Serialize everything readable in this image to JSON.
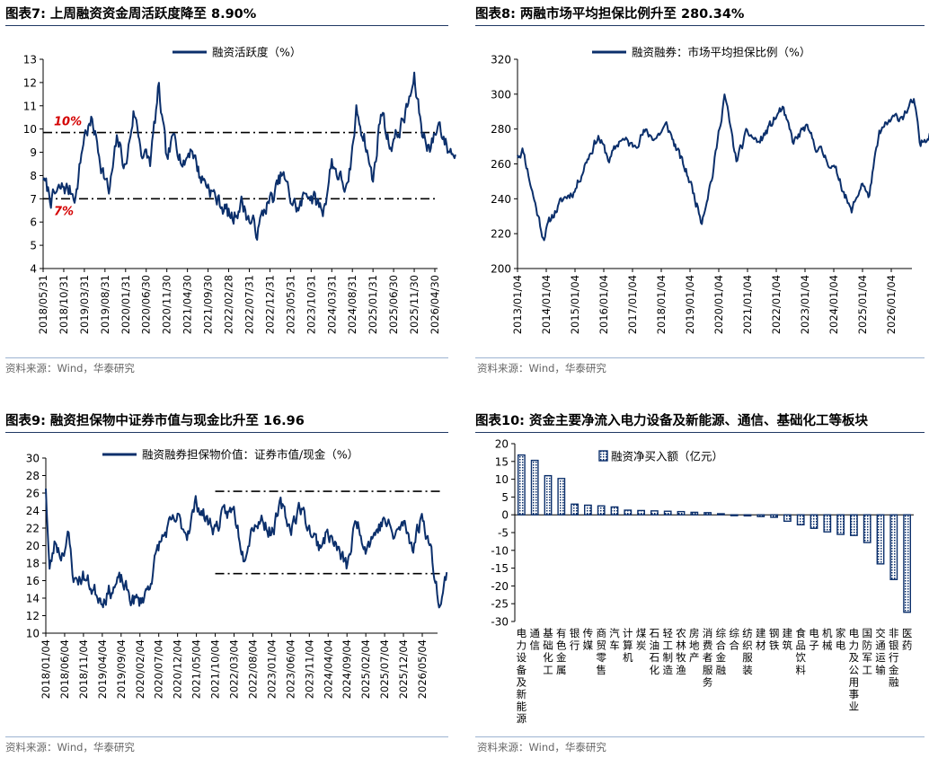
{
  "colors": {
    "series": "#0b2f6b",
    "annotation": "#d40000",
    "ref_line": "#000000",
    "title_rule": "#1f3864",
    "source_rule": "#9db3d1"
  },
  "panels": [
    {
      "title": "图表7:  上周融资资金周活跃度降至 8.90%",
      "source": "资料来源：Wind，华泰研究"
    },
    {
      "title": "图表8:  两融市场平均担保比例升至 280.34%",
      "source": "资料来源：Wind，华泰研究"
    },
    {
      "title": "图表9:  融资担保物中证券市值与现金比升至 16.96",
      "source": "资料来源：Wind，华泰研究"
    },
    {
      "title": "图表10:  资金主要净流入电力设备及新能源、通信、基础化工等板块",
      "source": "资料来源：Wind，华泰研究"
    }
  ],
  "chart_data": [
    {
      "type": "line",
      "legend": "融资活跃度（%）",
      "ylim": [
        4,
        13
      ],
      "yticks": [
        4,
        5,
        6,
        7,
        8,
        9,
        10,
        11,
        12,
        13
      ],
      "x_tick_labels": [
        "2018/05/31",
        "2018/10/31",
        "2019/03/31",
        "2019/08/31",
        "2020/01/31",
        "2020/06/30",
        "2020/11/30",
        "2021/04/30",
        "2021/09/30",
        "2022/02/28",
        "2022/07/31",
        "2022/12/31",
        "2023/05/31",
        "2023/10/31",
        "2024/03/31",
        "2024/08/31",
        "2025/01/31",
        "2025/06/30",
        "2025/11/30",
        "2026/04/30"
      ],
      "reference_lines": [
        {
          "value": 9.85,
          "label": "10%"
        },
        {
          "value": 7.0,
          "label": "7%"
        }
      ],
      "anchors": [
        [
          0,
          7.8
        ],
        [
          0.4,
          7.0
        ],
        [
          1.0,
          7.5
        ],
        [
          1.6,
          7.2
        ],
        [
          2.0,
          9.8
        ],
        [
          2.4,
          10.3
        ],
        [
          2.8,
          8.6
        ],
        [
          3.2,
          7.2
        ],
        [
          3.6,
          9.6
        ],
        [
          4.0,
          8.3
        ],
        [
          4.4,
          10.8
        ],
        [
          4.8,
          9.0
        ],
        [
          5.2,
          8.6
        ],
        [
          5.6,
          11.7
        ],
        [
          6.0,
          8.6
        ],
        [
          6.4,
          9.8
        ],
        [
          6.8,
          8.4
        ],
        [
          7.2,
          9.3
        ],
        [
          7.6,
          8.0
        ],
        [
          8.0,
          7.6
        ],
        [
          8.4,
          7.0
        ],
        [
          8.8,
          6.6
        ],
        [
          9.2,
          6.1
        ],
        [
          9.6,
          6.9
        ],
        [
          10.0,
          6.1
        ],
        [
          10.4,
          5.6
        ],
        [
          10.8,
          6.7
        ],
        [
          11.2,
          7.1
        ],
        [
          11.6,
          8.1
        ],
        [
          12.0,
          7.0
        ],
        [
          12.4,
          6.5
        ],
        [
          12.8,
          7.4
        ],
        [
          13.2,
          6.9
        ],
        [
          13.6,
          6.5
        ],
        [
          14.0,
          8.6
        ],
        [
          14.4,
          7.9
        ],
        [
          14.8,
          7.3
        ],
        [
          15.2,
          10.8
        ],
        [
          15.6,
          9.6
        ],
        [
          16.0,
          7.7
        ],
        [
          16.4,
          10.9
        ],
        [
          16.8,
          9.3
        ],
        [
          17.2,
          9.8
        ],
        [
          17.6,
          10.7
        ],
        [
          18.0,
          12.1
        ],
        [
          18.4,
          9.8
        ],
        [
          18.8,
          9.2
        ],
        [
          19.2,
          10.3
        ],
        [
          19.6,
          9.2
        ],
        [
          20.0,
          8.9
        ]
      ],
      "noise": 0.4
    },
    {
      "type": "line",
      "legend": "融资融券：市场平均担保比例（%）",
      "ylim": [
        200,
        320
      ],
      "yticks": [
        200,
        220,
        240,
        260,
        280,
        300,
        320
      ],
      "x_tick_labels": [
        "2013/01/04",
        "2014/01/04",
        "2015/01/04",
        "2016/01/04",
        "2017/01/04",
        "2018/01/04",
        "2019/01/04",
        "2020/01/04",
        "2021/01/04",
        "2022/01/04",
        "2023/01/04",
        "2024/01/04",
        "2025/01/04",
        "2026/01/04"
      ],
      "anchors": [
        [
          0,
          265
        ],
        [
          0.2,
          268
        ],
        [
          0.5,
          245
        ],
        [
          0.9,
          218
        ],
        [
          1.2,
          230
        ],
        [
          1.6,
          240
        ],
        [
          2.0,
          245
        ],
        [
          2.4,
          262
        ],
        [
          2.8,
          276
        ],
        [
          3.2,
          262
        ],
        [
          3.6,
          275
        ],
        [
          4.0,
          270
        ],
        [
          4.4,
          278
        ],
        [
          4.8,
          275
        ],
        [
          5.2,
          282
        ],
        [
          5.6,
          266
        ],
        [
          6.0,
          250
        ],
        [
          6.4,
          228
        ],
        [
          6.8,
          255
        ],
        [
          7.2,
          300
        ],
        [
          7.6,
          262
        ],
        [
          8.0,
          278
        ],
        [
          8.4,
          272
        ],
        [
          8.8,
          282
        ],
        [
          9.2,
          292
        ],
        [
          9.6,
          272
        ],
        [
          10.0,
          281
        ],
        [
          10.4,
          270
        ],
        [
          10.8,
          262
        ],
        [
          11.2,
          252
        ],
        [
          11.6,
          232
        ],
        [
          12.0,
          250
        ],
        [
          12.2,
          240
        ],
        [
          12.6,
          278
        ],
        [
          13.0,
          285
        ],
        [
          13.4,
          288
        ],
        [
          13.8,
          296
        ],
        [
          14.0,
          270
        ],
        [
          14.4,
          280
        ]
      ],
      "noise": 3.0
    },
    {
      "type": "line",
      "legend": "融资融券担保物价值：证券市值/现金（%）",
      "ylim": [
        10,
        30
      ],
      "yticks": [
        10,
        12,
        14,
        16,
        18,
        20,
        22,
        24,
        26,
        28,
        30
      ],
      "x_tick_labels": [
        "2018/01/04",
        "2018/06/04",
        "2018/11/04",
        "2019/04/04",
        "2019/09/04",
        "2020/02/04",
        "2020/07/04",
        "2020/12/04",
        "2021/05/04",
        "2021/10/04",
        "2022/03/04",
        "2022/08/04",
        "2023/01/04",
        "2023/06/04",
        "2023/11/04",
        "2024/04/04",
        "2024/09/04",
        "2025/02/04",
        "2025/07/04",
        "2025/12/04",
        "2026/05/04"
      ],
      "reference_lines": [
        {
          "value": 26.2,
          "from": 9.0,
          "to": 21.0
        },
        {
          "value": 16.8,
          "from": 9.0,
          "to": 21.0
        }
      ],
      "anchors": [
        [
          0,
          26.5
        ],
        [
          0.2,
          17.0
        ],
        [
          0.5,
          20.5
        ],
        [
          0.8,
          19.0
        ],
        [
          1.2,
          21.0
        ],
        [
          1.5,
          16.0
        ],
        [
          2.0,
          16.5
        ],
        [
          2.5,
          15.0
        ],
        [
          3.0,
          14.0
        ],
        [
          3.5,
          15.0
        ],
        [
          4.0,
          16.0
        ],
        [
          4.5,
          14.0
        ],
        [
          5.0,
          13.5
        ],
        [
          5.5,
          15.5
        ],
        [
          6.0,
          20.0
        ],
        [
          6.5,
          22.0
        ],
        [
          7.0,
          23.0
        ],
        [
          7.5,
          21.5
        ],
        [
          8.0,
          25.0
        ],
        [
          8.5,
          23.0
        ],
        [
          9.0,
          22.0
        ],
        [
          9.5,
          23.5
        ],
        [
          10.0,
          24.0
        ],
        [
          10.5,
          19.0
        ],
        [
          11.0,
          22.5
        ],
        [
          11.5,
          23.0
        ],
        [
          12.0,
          21.5
        ],
        [
          12.5,
          24.5
        ],
        [
          13.0,
          22.0
        ],
        [
          13.5,
          24.5
        ],
        [
          14.0,
          22.0
        ],
        [
          14.5,
          20.0
        ],
        [
          15.0,
          21.5
        ],
        [
          15.5,
          19.5
        ],
        [
          16.0,
          17.5
        ],
        [
          16.5,
          23.0
        ],
        [
          17.0,
          20.0
        ],
        [
          17.5,
          21.5
        ],
        [
          18.0,
          23.0
        ],
        [
          18.5,
          21.0
        ],
        [
          19.0,
          22.5
        ],
        [
          19.5,
          20.0
        ],
        [
          20.0,
          23.5
        ],
        [
          20.4,
          20.0
        ],
        [
          20.8,
          15.0
        ],
        [
          21.0,
          13.3
        ],
        [
          21.3,
          16.96
        ]
      ],
      "noise": 1.0
    },
    {
      "type": "bar",
      "legend": "融资净买入额（亿元）",
      "ylim": [
        -30,
        20
      ],
      "yticks": [
        -30,
        -25,
        -20,
        -15,
        -10,
        -5,
        0,
        5,
        10,
        15,
        20
      ],
      "categories": [
        "电力设备及新能源",
        "通信",
        "基础化工",
        "有色金属",
        "银行",
        "传媒",
        "商贸零售",
        "汽车",
        "计算机",
        "煤炭",
        "石油石化",
        "轻工制造",
        "农林牧渔",
        "房地产",
        "消费者服务",
        "综合金融",
        "综合",
        "纺织服装",
        "建材",
        "钢铁",
        "建筑",
        "食品饮料",
        "电子",
        "机械",
        "家电",
        "电力及公用事业",
        "国防军工",
        "交通运输",
        "非银行金融",
        "医药"
      ],
      "values": [
        16.8,
        15.3,
        11.0,
        10.2,
        3.0,
        2.7,
        2.5,
        2.2,
        1.3,
        1.2,
        1.1,
        1.0,
        0.9,
        0.7,
        0.6,
        0.3,
        -0.2,
        -0.3,
        -0.5,
        -0.7,
        -1.8,
        -2.8,
        -3.8,
        -4.8,
        -5.5,
        -5.8,
        -7.8,
        -13.8,
        -18.2,
        -27.4
      ]
    }
  ]
}
